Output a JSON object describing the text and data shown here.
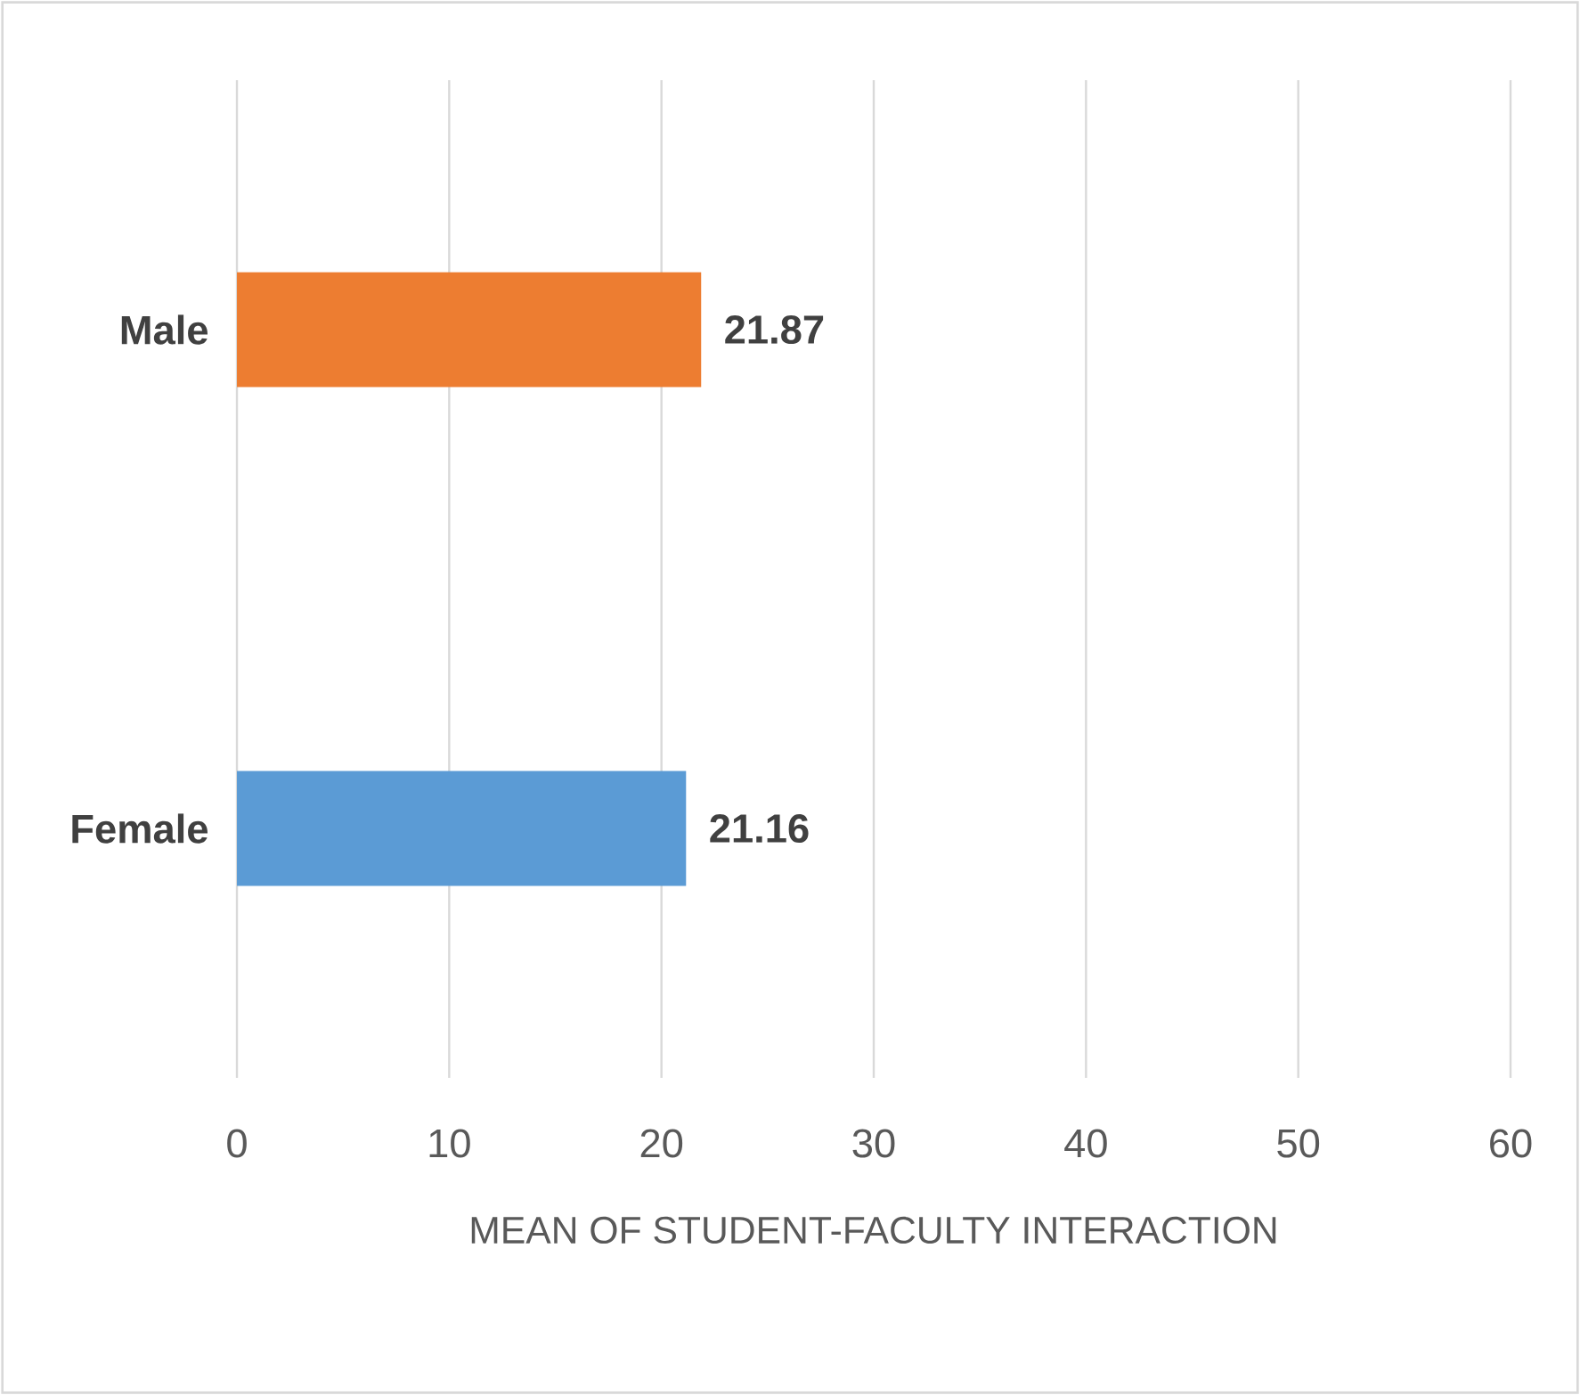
{
  "chart_data": {
    "type": "bar",
    "orientation": "horizontal",
    "xlabel": "MEAN OF STUDENT-FACULTY INTERACTION",
    "categories": [
      "Male",
      "Female"
    ],
    "values": [
      21.87,
      21.16
    ],
    "colors": [
      "#ed7d31",
      "#5b9bd5"
    ],
    "xlim": [
      0,
      60
    ],
    "xticks": [
      0,
      10,
      20,
      30,
      40,
      50,
      60
    ],
    "grid": "x",
    "data_labels": true
  }
}
